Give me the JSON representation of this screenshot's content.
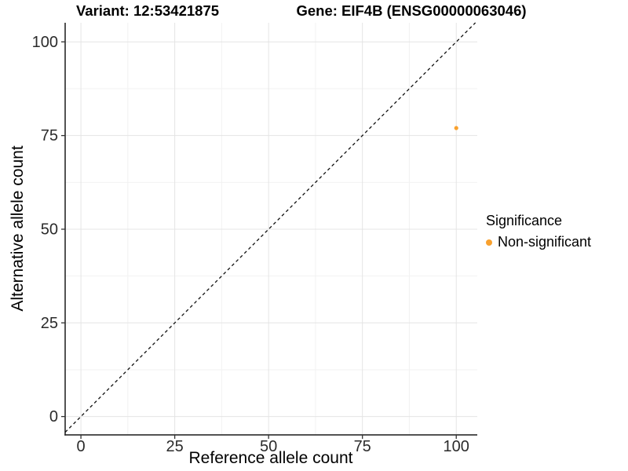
{
  "chart_data": {
    "type": "scatter",
    "title_left": "Variant: 12:53421875",
    "title_right": "Gene: EIF4B (ENSG00000063046)",
    "xlabel": "Reference allele count",
    "ylabel": "Alternative allele count",
    "xlim": [
      -4.2,
      105.6
    ],
    "ylim": [
      -4.9,
      105.1
    ],
    "x_ticks": [
      0,
      25,
      50,
      75,
      100
    ],
    "y_ticks": [
      0,
      25,
      50,
      75,
      100
    ],
    "grid": "major+minor",
    "series": [
      {
        "name": "Non-significant",
        "color": "#F9A12E",
        "marker": "circle",
        "marker_radius_px": 2.6,
        "points": [
          [
            100,
            77
          ]
        ]
      }
    ],
    "reference_line": {
      "slope": 1,
      "intercept": 0,
      "style": "dashed",
      "color": "#111111"
    },
    "legend": {
      "title": "Significance",
      "position": "right",
      "items": [
        {
          "label": "Non-significant",
          "color": "#F9A12E"
        }
      ]
    },
    "colors": {
      "grid_major": "#E4E4E4",
      "grid_minor": "#F2F2F2",
      "axis_line": "#1A1A1A",
      "tick_mark": "#333333",
      "tick_text": "#2B2B2B"
    }
  }
}
